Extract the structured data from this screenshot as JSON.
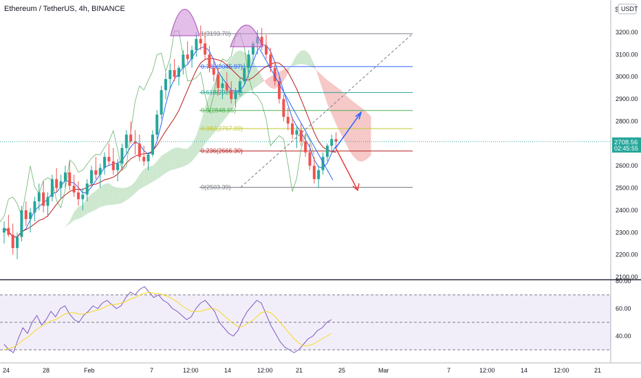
{
  "header": {
    "symbol_title": "Ethereum / TetherUS, 4h, BINANCE",
    "currency": "USDT",
    "settings_glyph": "$"
  },
  "price_axis": {
    "ticks": [
      "3200.00",
      "3100.00",
      "3000.00",
      "2900.00",
      "2800.00",
      "2700.00",
      "2600.00",
      "2500.00",
      "2400.00",
      "2300.00",
      "2200.00",
      "2100.00"
    ],
    "last_price": "2708.56",
    "countdown": "02:45:55"
  },
  "rsi_axis": {
    "ticks": [
      "80.00",
      "60.00",
      "40.00"
    ]
  },
  "time_axis": {
    "labels": [
      "24",
      "28",
      "Feb",
      "7",
      "12:00",
      "14",
      "12:00",
      "21",
      "25",
      "Mar",
      "7",
      "12:00",
      "14",
      "12:00",
      "21"
    ]
  },
  "fib_labels": [
    "1(3193.70)",
    "0.786(3045.97)",
    "0.618(2929.09)",
    "0.5(2848.65)",
    "0.382(2767.09)",
    "0.236(2666.30)",
    "0(2503.39)"
  ],
  "colors": {
    "up": "#26a69a",
    "down": "#ef5350",
    "tenkan": "#2962ff",
    "kijun": "#b71c1c",
    "chikou": "#43a047",
    "cloud_bull": "#a5d6a7",
    "cloud_bear": "#ef9a9a",
    "rsi": "#7e57c2",
    "rsi_ma": "#f9d71c",
    "arrow_up": "#2962ff",
    "arrow_down": "#e53935",
    "head_shoulders": "#ce93d8"
  },
  "chart_data": {
    "type": "candlestick",
    "title": "Ethereum / TetherUS, 4h, BINANCE",
    "ylim": [
      2100,
      3300
    ],
    "candles_ohlc": [
      [
        2300,
        2350,
        2250,
        2320
      ],
      [
        2320,
        2380,
        2280,
        2290
      ],
      [
        2290,
        2340,
        2200,
        2230
      ],
      [
        2230,
        2300,
        2180,
        2280
      ],
      [
        2280,
        2420,
        2260,
        2400
      ],
      [
        2400,
        2440,
        2330,
        2360
      ],
      [
        2360,
        2410,
        2300,
        2390
      ],
      [
        2390,
        2460,
        2350,
        2440
      ],
      [
        2440,
        2520,
        2400,
        2480
      ],
      [
        2480,
        2530,
        2390,
        2420
      ],
      [
        2420,
        2480,
        2370,
        2460
      ],
      [
        2460,
        2560,
        2440,
        2540
      ],
      [
        2540,
        2590,
        2480,
        2500
      ],
      [
        2500,
        2560,
        2450,
        2530
      ],
      [
        2530,
        2600,
        2500,
        2570
      ],
      [
        2570,
        2620,
        2490,
        2510
      ],
      [
        2510,
        2560,
        2460,
        2480
      ],
      [
        2480,
        2530,
        2420,
        2450
      ],
      [
        2450,
        2500,
        2400,
        2470
      ],
      [
        2470,
        2540,
        2440,
        2520
      ],
      [
        2520,
        2600,
        2500,
        2580
      ],
      [
        2580,
        2640,
        2540,
        2560
      ],
      [
        2560,
        2610,
        2500,
        2590
      ],
      [
        2590,
        2660,
        2560,
        2640
      ],
      [
        2640,
        2700,
        2600,
        2620
      ],
      [
        2620,
        2680,
        2560,
        2580
      ],
      [
        2580,
        2630,
        2530,
        2610
      ],
      [
        2610,
        2700,
        2590,
        2680
      ],
      [
        2680,
        2760,
        2650,
        2740
      ],
      [
        2740,
        2800,
        2700,
        2710
      ],
      [
        2710,
        2760,
        2650,
        2700
      ],
      [
        2700,
        2740,
        2620,
        2640
      ],
      [
        2640,
        2690,
        2600,
        2620
      ],
      [
        2620,
        2660,
        2580,
        2650
      ],
      [
        2650,
        2760,
        2640,
        2740
      ],
      [
        2740,
        2850,
        2720,
        2830
      ],
      [
        2830,
        2960,
        2810,
        2940
      ],
      [
        2940,
        3020,
        2900,
        2990
      ],
      [
        2990,
        3060,
        2950,
        3030
      ],
      [
        3030,
        3080,
        2980,
        3000
      ],
      [
        3000,
        3050,
        2960,
        3040
      ],
      [
        3040,
        3120,
        3010,
        3100
      ],
      [
        3100,
        3160,
        3060,
        3080
      ],
      [
        3080,
        3140,
        3040,
        3120
      ],
      [
        3120,
        3200,
        3090,
        3170
      ],
      [
        3170,
        3230,
        3120,
        3150
      ],
      [
        3150,
        3200,
        3080,
        3100
      ],
      [
        3100,
        3140,
        3020,
        3040
      ],
      [
        3040,
        3080,
        2980,
        3010
      ],
      [
        3010,
        3040,
        2920,
        2950
      ],
      [
        2950,
        3000,
        2900,
        2970
      ],
      [
        2970,
        3020,
        2930,
        2940
      ],
      [
        2940,
        2980,
        2880,
        2900
      ],
      [
        2900,
        2950,
        2860,
        2930
      ],
      [
        2930,
        3000,
        2910,
        2980
      ],
      [
        2980,
        3060,
        2960,
        3040
      ],
      [
        3040,
        3120,
        3020,
        3100
      ],
      [
        3100,
        3160,
        3060,
        3150
      ],
      [
        3150,
        3210,
        3100,
        3180
      ],
      [
        3180,
        3220,
        3120,
        3140
      ],
      [
        3140,
        3190,
        3080,
        3100
      ],
      [
        3100,
        3130,
        3020,
        3040
      ],
      [
        3040,
        3070,
        2960,
        2980
      ],
      [
        2980,
        3000,
        2880,
        2900
      ],
      [
        2900,
        2920,
        2800,
        2820
      ],
      [
        2820,
        2860,
        2760,
        2790
      ],
      [
        2790,
        2820,
        2720,
        2740
      ],
      [
        2740,
        2780,
        2680,
        2760
      ],
      [
        2760,
        2790,
        2690,
        2710
      ],
      [
        2710,
        2740,
        2640,
        2660
      ],
      [
        2660,
        2700,
        2580,
        2600
      ],
      [
        2600,
        2640,
        2520,
        2540
      ],
      [
        2540,
        2600,
        2500,
        2580
      ],
      [
        2580,
        2660,
        2560,
        2640
      ],
      [
        2640,
        2700,
        2620,
        2690
      ],
      [
        2690,
        2740,
        2660,
        2720
      ],
      [
        2720,
        2750,
        2690,
        2708.56
      ]
    ],
    "fibonacci_retracement": [
      {
        "level": 1,
        "price": 3193.7
      },
      {
        "level": 0.786,
        "price": 3045.97
      },
      {
        "level": 0.618,
        "price": 2929.09
      },
      {
        "level": 0.5,
        "price": 2848.65
      },
      {
        "level": 0.382,
        "price": 2767.09
      },
      {
        "level": 0.236,
        "price": 2666.3
      },
      {
        "level": 0,
        "price": 2503.39
      }
    ],
    "last_price": 2708.56,
    "rsi": {
      "ylim": [
        20,
        80
      ],
      "bands": [
        70,
        50,
        30
      ],
      "values": [
        34,
        30,
        28,
        38,
        46,
        42,
        50,
        55,
        48,
        52,
        58,
        54,
        60,
        62,
        56,
        52,
        50,
        55,
        58,
        62,
        60,
        64,
        66,
        63,
        60,
        62,
        68,
        72,
        70,
        74,
        76,
        72,
        68,
        70,
        66,
        64,
        60,
        58,
        55,
        52,
        54,
        60,
        64,
        66,
        62,
        58,
        50,
        46,
        42,
        40,
        44,
        52,
        58,
        62,
        66,
        64,
        56,
        48,
        42,
        36,
        32,
        30,
        28,
        30,
        34,
        38,
        40,
        44,
        46,
        50,
        52
      ],
      "ma_values": [
        30,
        31,
        32,
        34,
        37,
        39,
        42,
        45,
        47,
        49,
        51,
        52,
        54,
        56,
        57,
        57,
        56,
        56,
        57,
        58,
        59,
        60,
        62,
        63,
        63,
        64,
        65,
        67,
        68,
        70,
        71,
        72,
        71,
        71,
        70,
        69,
        67,
        65,
        62,
        60,
        58,
        58,
        58,
        59,
        60,
        60,
        58,
        55,
        52,
        49,
        47,
        47,
        49,
        51,
        54,
        57,
        58,
        57,
        54,
        50,
        46,
        42,
        38,
        35,
        33,
        33,
        34,
        36,
        38,
        40,
        42
      ]
    },
    "projections": [
      {
        "direction": "up",
        "from": 2680,
        "to": 2840
      },
      {
        "direction": "down",
        "from": 2680,
        "to": 2490
      }
    ]
  }
}
